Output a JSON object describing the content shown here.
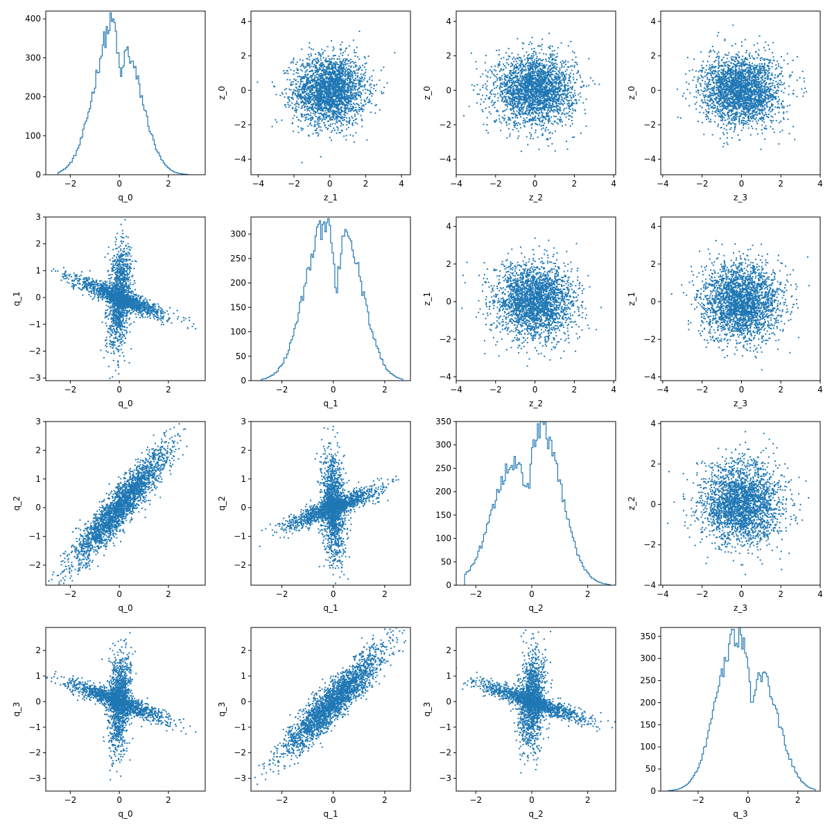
{
  "colors": {
    "series": "#1f77b4",
    "axes": "#000000",
    "background": "#ffffff"
  },
  "chart_data": [
    {
      "row": 0,
      "col": 0,
      "type": "histogram",
      "xlabel": "q_0",
      "ylabel": "",
      "xlim": [
        -3.0,
        3.5
      ],
      "ylim": [
        0,
        420
      ],
      "xticks": [
        -2,
        0,
        2
      ],
      "yticks": [
        0,
        100,
        200,
        300,
        400
      ],
      "center": 0.0,
      "peaks": [
        {
          "x": -0.18,
          "y": 397
        },
        {
          "x": 0.18,
          "y": 320
        }
      ],
      "dip": {
        "x": 0.05,
        "y": 255
      },
      "range": [
        -2.5,
        2.8
      ]
    },
    {
      "row": 0,
      "col": 1,
      "type": "scatter",
      "xlabel": "z_1",
      "ylabel": "z_0",
      "xlim": [
        -4.4,
        4.5
      ],
      "ylim": [
        -4.9,
        4.6
      ],
      "xticks": [
        -4,
        -2,
        0,
        2,
        4
      ],
      "yticks": [
        -4,
        -2,
        0,
        2,
        4
      ],
      "shape": "gaussian"
    },
    {
      "row": 0,
      "col": 2,
      "type": "scatter",
      "xlabel": "z_2",
      "ylabel": "z_0",
      "xlim": [
        -4.0,
        4.1
      ],
      "ylim": [
        -4.9,
        4.6
      ],
      "xticks": [
        -4,
        -2,
        0,
        2,
        4
      ],
      "yticks": [
        -4,
        -2,
        0,
        2,
        4
      ],
      "shape": "gaussian"
    },
    {
      "row": 0,
      "col": 3,
      "type": "scatter",
      "xlabel": "z_3",
      "ylabel": "z_0",
      "xlim": [
        -4.1,
        4.0
      ],
      "ylim": [
        -4.9,
        4.6
      ],
      "xticks": [
        -4,
        -2,
        0,
        2,
        4
      ],
      "yticks": [
        -4,
        -2,
        0,
        2,
        4
      ],
      "shape": "gaussian"
    },
    {
      "row": 1,
      "col": 0,
      "type": "scatter",
      "xlabel": "q_0",
      "ylabel": "q_1",
      "xlim": [
        -3.0,
        3.5
      ],
      "ylim": [
        -3.1,
        3.0
      ],
      "xticks": [
        -2,
        0,
        2
      ],
      "yticks": [
        -3,
        -2,
        -1,
        0,
        1,
        2,
        3
      ],
      "shape": "cross",
      "arm_slope": -0.35
    },
    {
      "row": 1,
      "col": 1,
      "type": "histogram",
      "xlabel": "q_1",
      "ylabel": "",
      "xlim": [
        -3.2,
        3.0
      ],
      "ylim": [
        0,
        335
      ],
      "xticks": [
        -2,
        0,
        2
      ],
      "yticks": [
        0,
        50,
        100,
        150,
        200,
        250,
        300
      ],
      "center": 0.0,
      "peaks": [
        {
          "x": -0.3,
          "y": 318
        },
        {
          "x": 0.4,
          "y": 302
        }
      ],
      "dip": {
        "x": 0.12,
        "y": 190
      },
      "range": [
        -2.8,
        2.7
      ]
    },
    {
      "row": 1,
      "col": 2,
      "type": "scatter",
      "xlabel": "z_2",
      "ylabel": "z_1",
      "xlim": [
        -4.0,
        4.1
      ],
      "ylim": [
        -4.2,
        4.5
      ],
      "xticks": [
        -4,
        -2,
        0,
        2,
        4
      ],
      "yticks": [
        -4,
        -2,
        0,
        2,
        4
      ],
      "shape": "gaussian"
    },
    {
      "row": 1,
      "col": 3,
      "type": "scatter",
      "xlabel": "z_3",
      "ylabel": "z_1",
      "xlim": [
        -4.1,
        4.0
      ],
      "ylim": [
        -4.2,
        4.5
      ],
      "xticks": [
        -4,
        -2,
        0,
        2,
        4
      ],
      "yticks": [
        -4,
        -2,
        0,
        2,
        4
      ],
      "shape": "gaussian"
    },
    {
      "row": 2,
      "col": 0,
      "type": "scatter",
      "xlabel": "q_0",
      "ylabel": "q_2",
      "xlim": [
        -3.0,
        3.5
      ],
      "ylim": [
        -2.7,
        3.0
      ],
      "xticks": [
        -2,
        0,
        2
      ],
      "yticks": [
        -2,
        -1,
        0,
        1,
        2,
        3
      ],
      "shape": "correlated",
      "slope": 1.0
    },
    {
      "row": 2,
      "col": 1,
      "type": "scatter",
      "xlabel": "q_1",
      "ylabel": "q_2",
      "xlim": [
        -3.2,
        3.0
      ],
      "ylim": [
        -2.7,
        3.0
      ],
      "xticks": [
        -2,
        0,
        2
      ],
      "yticks": [
        -2,
        -1,
        0,
        1,
        2,
        3
      ],
      "shape": "cross",
      "arm_slope": 0.35
    },
    {
      "row": 2,
      "col": 2,
      "type": "histogram",
      "xlabel": "q_2",
      "ylabel": "",
      "xlim": [
        -2.7,
        3.0
      ],
      "ylim": [
        0,
        350
      ],
      "xticks": [
        -2,
        0,
        2
      ],
      "yticks": [
        0,
        50,
        100,
        150,
        200,
        250,
        300,
        350
      ],
      "center": 0.0,
      "peaks": [
        {
          "x": -0.6,
          "y": 265
        },
        {
          "x": 0.3,
          "y": 335
        }
      ],
      "dip": {
        "x": -0.15,
        "y": 200
      },
      "range": [
        -2.4,
        2.8
      ]
    },
    {
      "row": 2,
      "col": 3,
      "type": "scatter",
      "xlabel": "z_3",
      "ylabel": "z_2",
      "xlim": [
        -4.1,
        4.0
      ],
      "ylim": [
        -4.0,
        4.1
      ],
      "xticks": [
        -4,
        -2,
        0,
        2,
        4
      ],
      "yticks": [
        -4,
        -2,
        0,
        2,
        4
      ],
      "shape": "gaussian"
    },
    {
      "row": 3,
      "col": 0,
      "type": "scatter",
      "xlabel": "q_0",
      "ylabel": "q_3",
      "xlim": [
        -3.0,
        3.5
      ],
      "ylim": [
        -3.5,
        2.9
      ],
      "xticks": [
        -2,
        0,
        2
      ],
      "yticks": [
        -3,
        -2,
        -1,
        0,
        1,
        2
      ],
      "shape": "cross",
      "arm_slope": -0.35
    },
    {
      "row": 3,
      "col": 1,
      "type": "scatter",
      "xlabel": "q_1",
      "ylabel": "q_3",
      "xlim": [
        -3.2,
        3.0
      ],
      "ylim": [
        -3.5,
        2.9
      ],
      "xticks": [
        -2,
        0,
        2
      ],
      "yticks": [
        -3,
        -2,
        -1,
        0,
        1,
        2
      ],
      "shape": "correlated",
      "slope": 1.0
    },
    {
      "row": 3,
      "col": 2,
      "type": "scatter",
      "xlabel": "q_2",
      "ylabel": "q_3",
      "xlim": [
        -2.7,
        3.0
      ],
      "ylim": [
        -3.5,
        2.9
      ],
      "xticks": [
        -2,
        0,
        2
      ],
      "yticks": [
        -3,
        -2,
        -1,
        0,
        1,
        2
      ],
      "shape": "cross",
      "arm_slope": -0.35
    },
    {
      "row": 3,
      "col": 3,
      "type": "histogram",
      "xlabel": "q_3",
      "ylabel": "",
      "xlim": [
        -3.5,
        2.9
      ],
      "ylim": [
        0,
        370
      ],
      "xticks": [
        -2,
        0,
        2
      ],
      "yticks": [
        0,
        50,
        100,
        150,
        200,
        250,
        300,
        350
      ],
      "center": 0.0,
      "peaks": [
        {
          "x": -0.45,
          "y": 350
        },
        {
          "x": 0.5,
          "y": 260
        }
      ],
      "dip": {
        "x": 0.15,
        "y": 210
      },
      "range": [
        -3.2,
        2.7
      ]
    }
  ]
}
